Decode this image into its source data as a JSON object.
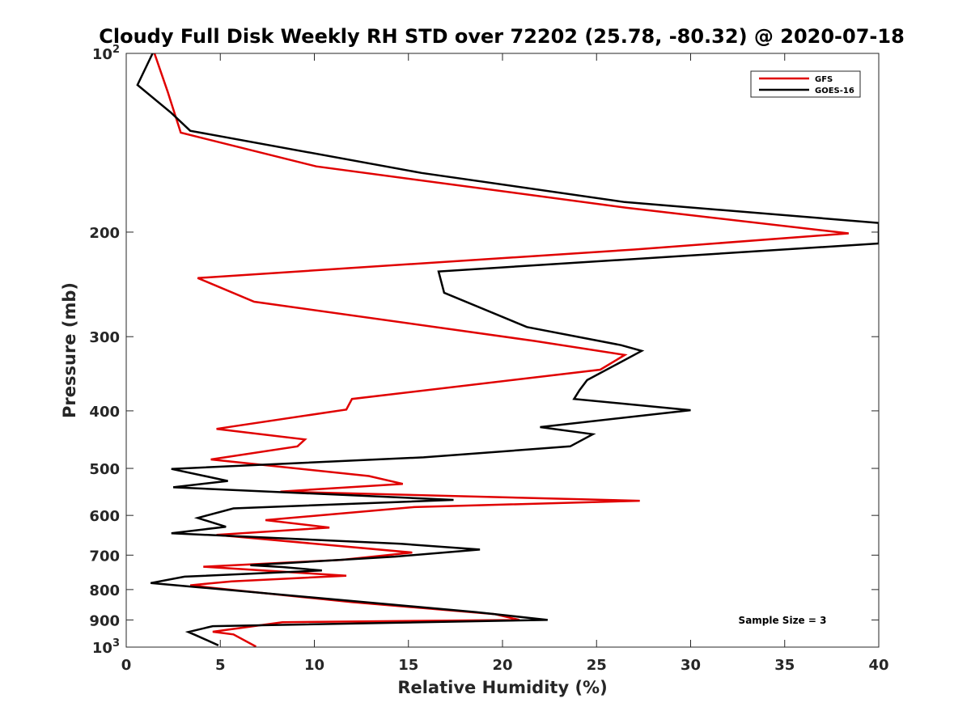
{
  "chart_data": {
    "type": "line",
    "title": "Cloudy Full Disk Weekly RH STD over 72202 (25.78, -80.32) @ 2020-07-18",
    "xlabel": "Relative Humidity (%)",
    "ylabel": "Pressure (mb)",
    "xlim": [
      0,
      40
    ],
    "ylim": [
      100,
      1000
    ],
    "y_scale": "log",
    "y_reversed": true,
    "x_ticks": [
      0,
      5,
      10,
      15,
      20,
      25,
      30,
      35,
      40
    ],
    "y_ticks": [
      {
        "value": 100,
        "label": "10",
        "exp": "2"
      },
      {
        "value": 200,
        "label": "200",
        "exp": ""
      },
      {
        "value": 300,
        "label": "300",
        "exp": ""
      },
      {
        "value": 400,
        "label": "400",
        "exp": ""
      },
      {
        "value": 500,
        "label": "500",
        "exp": ""
      },
      {
        "value": 600,
        "label": "600",
        "exp": ""
      },
      {
        "value": 700,
        "label": "700",
        "exp": ""
      },
      {
        "value": 800,
        "label": "800",
        "exp": ""
      },
      {
        "value": 900,
        "label": "900",
        "exp": ""
      },
      {
        "value": 1000,
        "label": "10",
        "exp": "3"
      }
    ],
    "grid": false,
    "legend_position": "top-right",
    "annotation": "Sample Size = 3",
    "series": [
      {
        "name": "GFS",
        "color": "#e00000",
        "points": [
          [
            1.5,
            100
          ],
          [
            2.2,
            116
          ],
          [
            2.9,
            136
          ],
          [
            10.1,
            155
          ],
          [
            26.6,
            182
          ],
          [
            38.4,
            201
          ],
          [
            27.0,
            214
          ],
          [
            3.8,
            239
          ],
          [
            6.8,
            262
          ],
          [
            21.7,
            305
          ],
          [
            26.5,
            322
          ],
          [
            25.2,
            341
          ],
          [
            12.0,
            382
          ],
          [
            11.7,
            398
          ],
          [
            4.8,
            429
          ],
          [
            9.5,
            447
          ],
          [
            9.1,
            459
          ],
          [
            4.5,
            483
          ],
          [
            12.9,
            515
          ],
          [
            14.7,
            531
          ],
          [
            8.2,
            547
          ],
          [
            27.3,
            567
          ],
          [
            15.3,
            581
          ],
          [
            7.4,
            611
          ],
          [
            10.8,
            629
          ],
          [
            4.8,
            647
          ],
          [
            15.2,
            693
          ],
          [
            11.4,
            713
          ],
          [
            4.1,
            732
          ],
          [
            11.7,
            758
          ],
          [
            5.6,
            775
          ],
          [
            3.4,
            787
          ],
          [
            4.8,
            796
          ],
          [
            12.0,
            840
          ],
          [
            19.6,
            880
          ],
          [
            20.9,
            900
          ],
          [
            8.3,
            908
          ],
          [
            4.6,
            942
          ],
          [
            5.7,
            952
          ],
          [
            6.9,
            998
          ]
        ]
      },
      {
        "name": "GOES-16",
        "color": "#000000",
        "points": [
          [
            1.4,
            100
          ],
          [
            0.6,
            113
          ],
          [
            2.4,
            126
          ],
          [
            3.4,
            135
          ],
          [
            15.7,
            159
          ],
          [
            26.5,
            178
          ],
          [
            40.0,
            193
          ],
          [
            40.0,
            209
          ],
          [
            16.6,
            233
          ],
          [
            16.9,
            253
          ],
          [
            21.3,
            289
          ],
          [
            26.3,
            310
          ],
          [
            27.4,
            317
          ],
          [
            24.5,
            355
          ],
          [
            24.1,
            369
          ],
          [
            23.8,
            382
          ],
          [
            30.0,
            399
          ],
          [
            22.0,
            426
          ],
          [
            24.8,
            438
          ],
          [
            23.6,
            459
          ],
          [
            15.8,
            479
          ],
          [
            2.4,
            501
          ],
          [
            5.4,
            525
          ],
          [
            2.5,
            538
          ],
          [
            17.4,
            565
          ],
          [
            5.7,
            584
          ],
          [
            3.8,
            606
          ],
          [
            5.3,
            627
          ],
          [
            2.4,
            643
          ],
          [
            14.6,
            670
          ],
          [
            18.8,
            685
          ],
          [
            14.3,
            704
          ],
          [
            6.6,
            728
          ],
          [
            8.3,
            733
          ],
          [
            10.4,
            743
          ],
          [
            3.1,
            761
          ],
          [
            1.3,
            780
          ],
          [
            3.7,
            792
          ],
          [
            18.6,
            873
          ],
          [
            22.4,
            900
          ],
          [
            4.6,
            922
          ],
          [
            3.3,
            943
          ],
          [
            3.7,
            955
          ],
          [
            4.9,
            993
          ]
        ]
      }
    ]
  }
}
